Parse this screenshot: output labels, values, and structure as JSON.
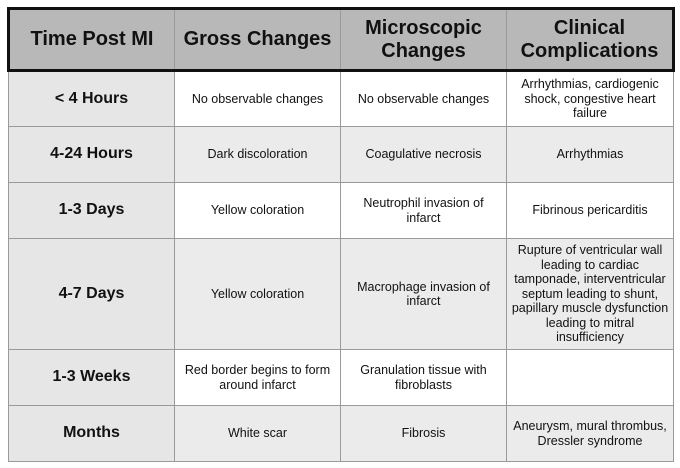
{
  "table": {
    "headers": [
      "Time Post MI",
      "Gross Changes",
      "Microscopic Changes",
      "Clinical Complications"
    ],
    "rows": [
      {
        "time": "< 4 Hours",
        "gross": "No observable changes",
        "micro": "No observable changes",
        "clinical": "Arrhythmias, cardiogenic shock, congestive heart failure"
      },
      {
        "time": "4-24 Hours",
        "gross": "Dark discoloration",
        "micro": "Coagulative necrosis",
        "clinical": "Arrhythmias"
      },
      {
        "time": "1-3 Days",
        "gross": "Yellow coloration",
        "micro": "Neutrophil invasion of infarct",
        "clinical": "Fibrinous pericarditis"
      },
      {
        "time": "4-7 Days",
        "gross": "Yellow coloration",
        "micro": "Macrophage invasion of infarct",
        "clinical": "Rupture of ventricular wall leading to cardiac tamponade, interventricular septum leading to shunt, papillary muscle dysfunction leading to mitral insufficiency"
      },
      {
        "time": "1-3 Weeks",
        "gross": "Red border begins to form around infarct",
        "micro": "Granulation tissue with fibroblasts",
        "clinical": ""
      },
      {
        "time": "Months",
        "gross": "White scar",
        "micro": "Fibrosis",
        "clinical": "Aneurysm, mural thrombus, Dressler syndrome"
      }
    ]
  }
}
